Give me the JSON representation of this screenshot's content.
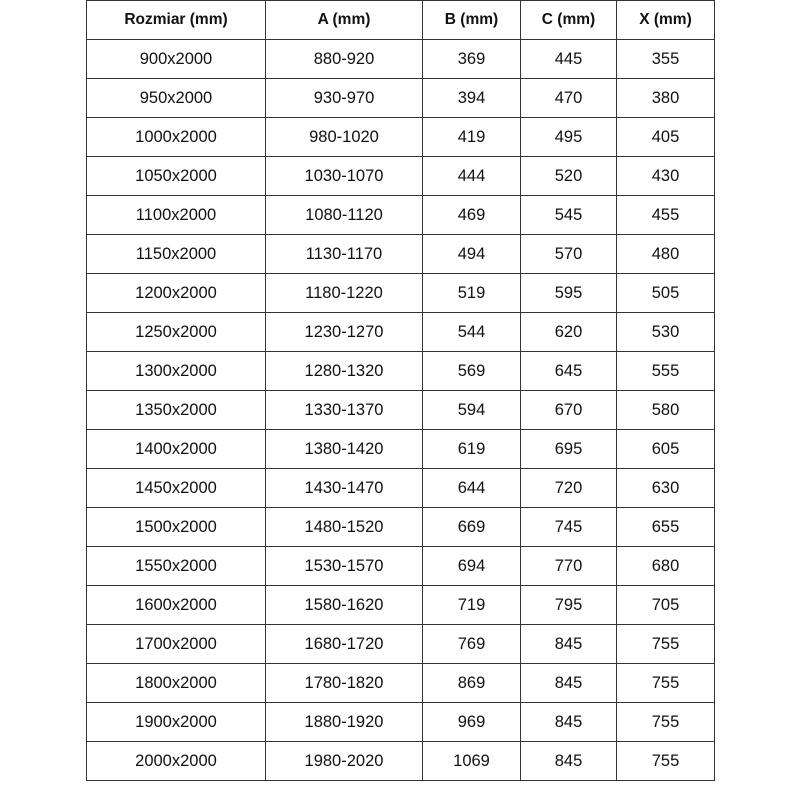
{
  "table": {
    "headers": [
      "Rozmiar (mm)",
      "A (mm)",
      "B (mm)",
      "C (mm)",
      "X (mm)"
    ],
    "rows": [
      [
        "900x2000",
        "880-920",
        "369",
        "445",
        "355"
      ],
      [
        "950x2000",
        "930-970",
        "394",
        "470",
        "380"
      ],
      [
        "1000x2000",
        "980-1020",
        "419",
        "495",
        "405"
      ],
      [
        "1050x2000",
        "1030-1070",
        "444",
        "520",
        "430"
      ],
      [
        "1100x2000",
        "1080-1120",
        "469",
        "545",
        "455"
      ],
      [
        "1150x2000",
        "1130-1170",
        "494",
        "570",
        "480"
      ],
      [
        "1200x2000",
        "1180-1220",
        "519",
        "595",
        "505"
      ],
      [
        "1250x2000",
        "1230-1270",
        "544",
        "620",
        "530"
      ],
      [
        "1300x2000",
        "1280-1320",
        "569",
        "645",
        "555"
      ],
      [
        "1350x2000",
        "1330-1370",
        "594",
        "670",
        "580"
      ],
      [
        "1400x2000",
        "1380-1420",
        "619",
        "695",
        "605"
      ],
      [
        "1450x2000",
        "1430-1470",
        "644",
        "720",
        "630"
      ],
      [
        "1500x2000",
        "1480-1520",
        "669",
        "745",
        "655"
      ],
      [
        "1550x2000",
        "1530-1570",
        "694",
        "770",
        "680"
      ],
      [
        "1600x2000",
        "1580-1620",
        "719",
        "795",
        "705"
      ],
      [
        "1700x2000",
        "1680-1720",
        "769",
        "845",
        "755"
      ],
      [
        "1800x2000",
        "1780-1820",
        "869",
        "845",
        "755"
      ],
      [
        "1900x2000",
        "1880-1920",
        "969",
        "845",
        "755"
      ],
      [
        "2000x2000",
        "1980-2020",
        "1069",
        "845",
        "755"
      ]
    ]
  }
}
